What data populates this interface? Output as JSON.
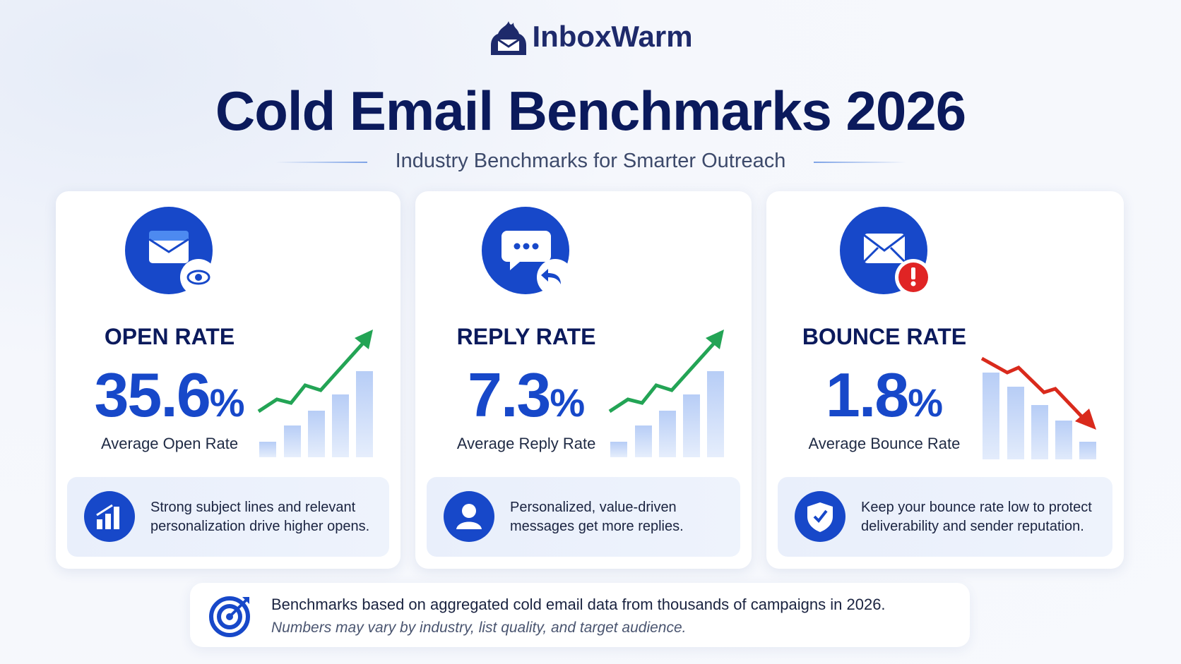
{
  "header": {
    "brand": "InboxWarm",
    "title": "Cold Email Benchmarks 2026",
    "subtitle": "Industry Benchmarks for Smarter Outreach"
  },
  "cards": [
    {
      "label": "OPEN RATE",
      "value": "35.6",
      "unit": "%",
      "caption": "Average Open Rate",
      "tip": "Strong subject lines and relevant personalization drive higher opens."
    },
    {
      "label": "REPLY RATE",
      "value": "7.3",
      "unit": "%",
      "caption": "Average Reply Rate",
      "tip": "Personalized, value-driven messages get more replies."
    },
    {
      "label": "BOUNCE RATE",
      "value": "1.8",
      "unit": "%",
      "caption": "Average Bounce Rate",
      "tip": "Keep your bounce rate low to protect deliverability and sender reputation."
    }
  ],
  "footer": {
    "note": "Benchmarks based on aggregated cold email data from thousands of campaigns in 2026.",
    "disclaimer": "Numbers may vary by industry, list quality, and target audience."
  }
}
